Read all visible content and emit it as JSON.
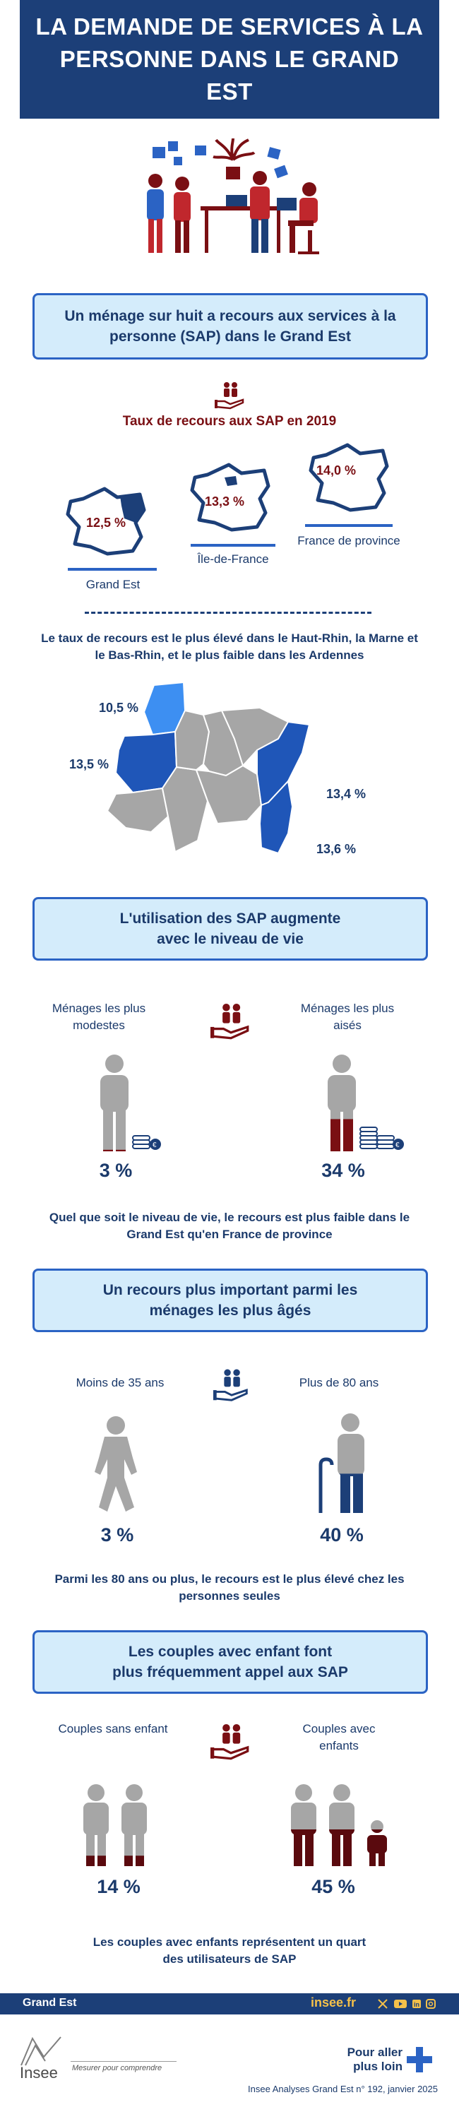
{
  "header": {
    "title": "LA DEMANDE DE SERVICES À LA PERSONNE DANS LE GRAND EST"
  },
  "section1": {
    "heading": "Un ménage sur huit a recours aux services à la personne (SAP) dans le Grand Est",
    "rate_title": "Taux de recours aux SAP en 2019",
    "regions": [
      {
        "label": "Grand Est",
        "value": "12,5 %"
      },
      {
        "label": "Île-de-France",
        "value": "13,3 %"
      },
      {
        "label": "France de province",
        "value": "14,0 %"
      }
    ],
    "caption": "Le taux de recours est le plus élevé dans le Haut-Rhin, la Marne et le Bas-Rhin, et le plus faible dans les Ardennes",
    "departments": [
      {
        "value": "10,5 %"
      },
      {
        "value": "13,5 %"
      },
      {
        "value": "13,4 %"
      },
      {
        "value": "13,6 %"
      }
    ]
  },
  "section2": {
    "heading": "L'utilisation des SAP augmente avec le niveau de vie",
    "left_label": "Ménages les plus modestes",
    "right_label": "Ménages les plus aisés",
    "left_value": "3 %",
    "right_value": "34 %",
    "left_fill": 0.03,
    "right_fill": 0.34,
    "caption": "Quel que soit le niveau de vie, le recours est plus faible dans le Grand Est qu'en France de province"
  },
  "section3": {
    "heading": "Un recours plus important parmi les ménages les plus âgés",
    "left_label": "Moins de 35 ans",
    "right_label": "Plus de 80 ans",
    "left_value": "3 %",
    "right_value": "40 %",
    "left_fill": 0.03,
    "right_fill": 0.4,
    "caption": "Parmi les 80 ans ou plus, le recours est le plus élevé chez les personnes seules"
  },
  "section4": {
    "heading": "Les couples avec enfant font plus fréquemment appel aux SAP",
    "left_label": "Couples sans enfant",
    "right_label": "Couples avec enfants",
    "left_value": "14 %",
    "right_value": "45 %",
    "left_fill": 0.14,
    "right_fill": 0.45,
    "caption": "Les couples avec enfants représentent un quart des utilisateurs de SAP"
  },
  "footer": {
    "region": "Grand Est",
    "site": "insee.fr",
    "logo_text": "Insee",
    "tagline": "Mesurer pour comprendre",
    "more_label": "Pour aller plus loin",
    "reference": "Insee Analyses Grand Est n° 192, janvier 2025"
  },
  "colors": {
    "navy": "#1c3f78",
    "blue": "#2b63c4",
    "light_blue": "#3d8ff2",
    "box_bg": "#d4ecfb",
    "maroon": "#7a0f13",
    "gray": "#a6a6a6"
  },
  "icons": [
    "people-hand-icon",
    "person-icon",
    "coins-icon",
    "cane-icon",
    "plus-icon",
    "x-icon",
    "youtube-icon",
    "linkedin-icon",
    "instagram-icon"
  ]
}
